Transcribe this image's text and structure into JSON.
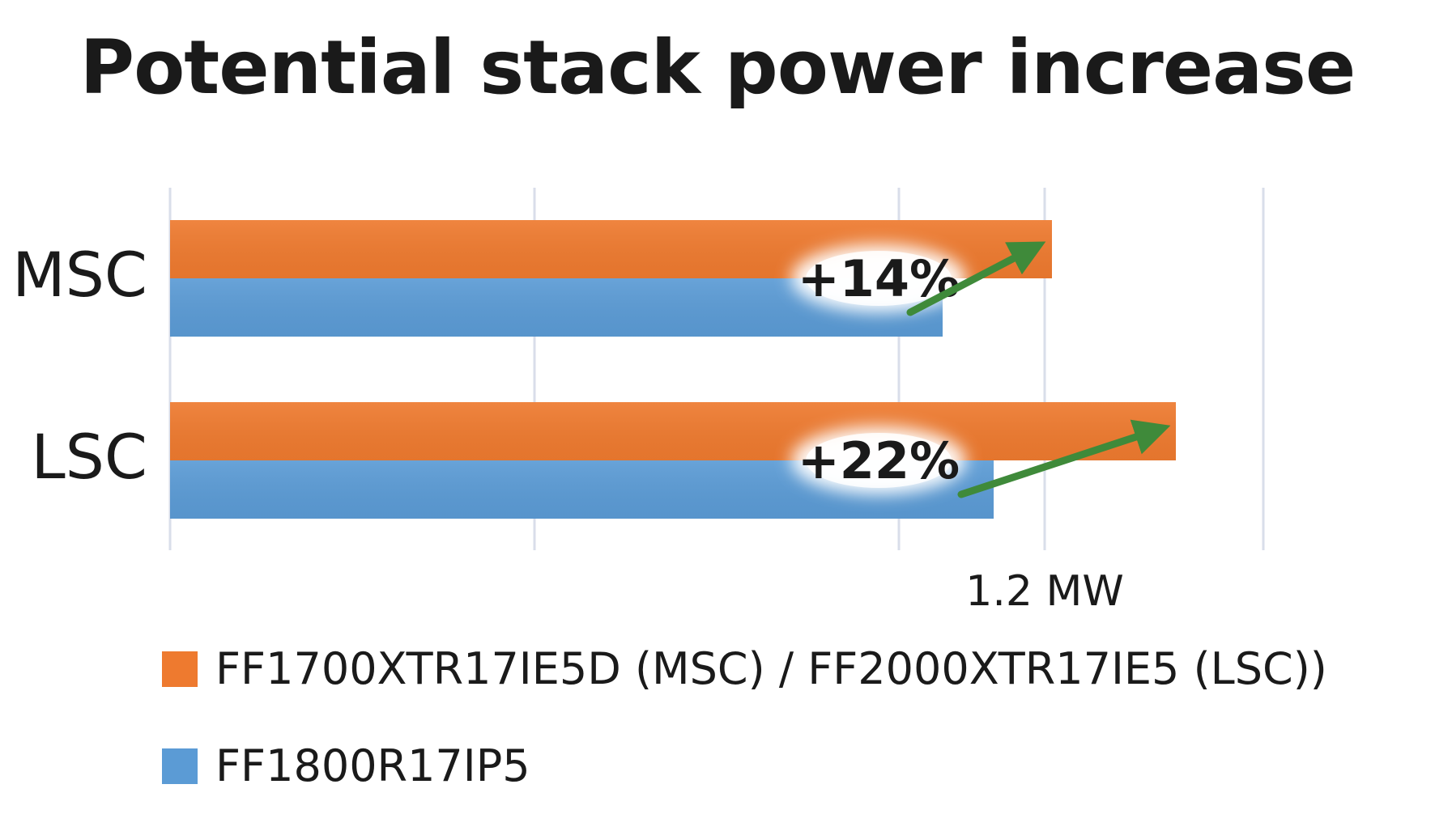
{
  "chart_data": {
    "type": "bar",
    "orientation": "horizontal",
    "title": "Potential stack power increase",
    "categories": [
      "MSC",
      "LSC"
    ],
    "series": [
      {
        "name": "FF1700XTR17IE5D (MSC) / FF2000XTR17IE5 (LSC))",
        "color": "#ee7a2f",
        "values": [
          1.21,
          1.38
        ]
      },
      {
        "name": "FF1800R17IP5",
        "color": "#5b9bd5",
        "values": [
          1.06,
          1.13
        ]
      }
    ],
    "annotations": [
      {
        "category": "MSC",
        "label": "+14%"
      },
      {
        "category": "LSC",
        "label": "+22%"
      }
    ],
    "arrow_color": "#3f8a3a",
    "xlim": [
      0,
      1.7
    ],
    "tick_labels": [
      {
        "value": 1.2,
        "label": "1.2 MW"
      }
    ],
    "grid": true,
    "legend_position": "bottom"
  }
}
